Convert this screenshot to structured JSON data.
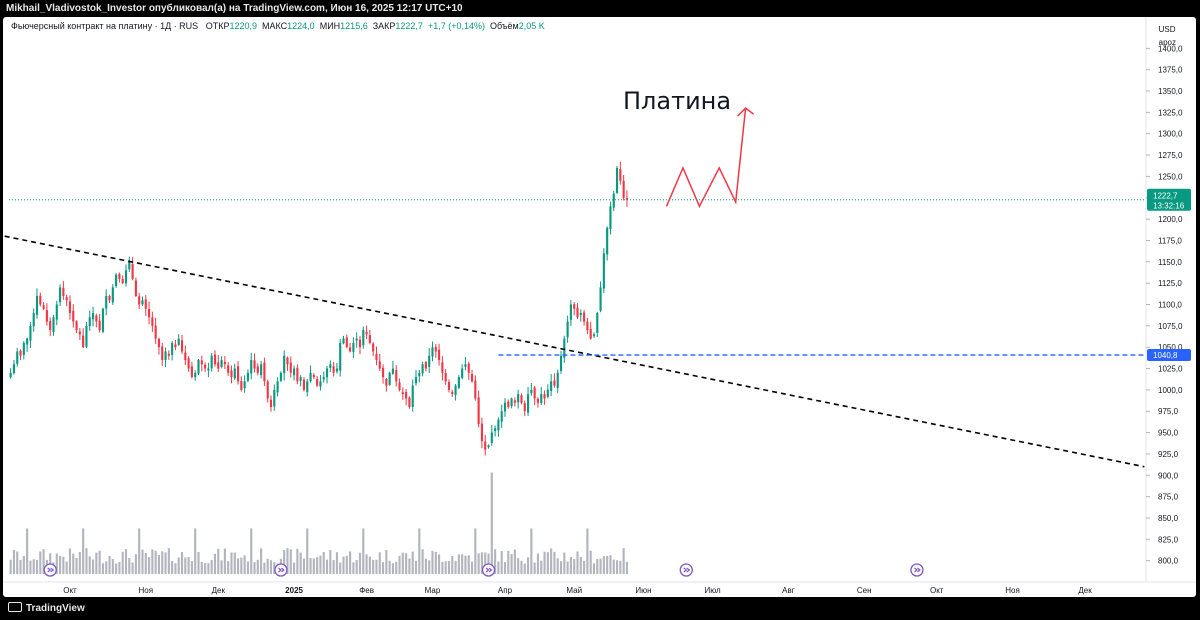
{
  "publisher_line": "Mikhail_Vladivostok_Investor опубликовал(а) на TradingView.com, Июн 16, 2025 12:17 UTC+10",
  "legend": {
    "symbol": "Фьючерсный контракт на платину · 1Д · RUS",
    "open_label": "ОТКР",
    "open": "1220,9",
    "high_label": "МАКС",
    "high": "1224,0",
    "low_label": "МИН",
    "low": "1215,6",
    "close_label": "ЗАКР",
    "close": "1222,7",
    "change": "+1,7 (+0,14%)",
    "volume_label": "Объём",
    "volume": "2,05 K"
  },
  "scale": {
    "currency": "USD",
    "mode": "apoz"
  },
  "annotation_title": "Платина",
  "price_tag": {
    "price": "1222,7",
    "countdown": "13:32:16",
    "color": "#089981"
  },
  "level_tag": {
    "price": "1040,8",
    "color": "#2962ff"
  },
  "footer_brand": "TradingView",
  "event_marker_icon": "dividend-arrow-icon",
  "colors": {
    "up": "#089981",
    "down": "#f23645",
    "volume": "#b2b5be",
    "trend": "#000000",
    "projection": "#f23645"
  },
  "chart_data": {
    "type": "candlestick",
    "y_axis": {
      "min": 775,
      "max": 1425,
      "ticks": [
        "800,0",
        "825,0",
        "850,0",
        "875,0",
        "900,0",
        "925,0",
        "950,0",
        "975,0",
        "1000,0",
        "1025,0",
        "1050,0",
        "1075,0",
        "1100,0",
        "1125,0",
        "1150,0",
        "1175,0",
        "1200,0",
        "1225,0",
        "1250,0",
        "1275,0",
        "1300,0",
        "1325,0",
        "1350,0",
        "1375,0",
        "1400,0"
      ]
    },
    "x_axis": {
      "labels": [
        {
          "text": "Окт",
          "index": 18
        },
        {
          "text": "Ноя",
          "index": 41
        },
        {
          "text": "Дек",
          "index": 63
        },
        {
          "text": "2025",
          "index": 86
        },
        {
          "text": "Фев",
          "index": 108
        },
        {
          "text": "Мар",
          "index": 128
        },
        {
          "text": "Апр",
          "index": 150
        },
        {
          "text": "Май",
          "index": 171
        },
        {
          "text": "Июн",
          "index": 192
        },
        {
          "text": "Июл",
          "index": 213
        },
        {
          "text": "Авг",
          "index": 236
        },
        {
          "text": "Сен",
          "index": 259
        },
        {
          "text": "Окт",
          "index": 281
        },
        {
          "text": "Ноя",
          "index": 304
        },
        {
          "text": "Дек",
          "index": 326
        }
      ],
      "total_slots": 345
    },
    "closes": [
      1020,
      1030,
      1045,
      1040,
      1055,
      1060,
      1075,
      1090,
      1110,
      1100,
      1095,
      1080,
      1070,
      1085,
      1100,
      1120,
      1110,
      1105,
      1090,
      1080,
      1070,
      1065,
      1050,
      1075,
      1085,
      1090,
      1080,
      1070,
      1095,
      1110,
      1105,
      1120,
      1135,
      1130,
      1125,
      1140,
      1150,
      1130,
      1110,
      1100,
      1105,
      1095,
      1085,
      1075,
      1060,
      1050,
      1035,
      1045,
      1040,
      1055,
      1050,
      1060,
      1045,
      1035,
      1025,
      1015,
      1020,
      1035,
      1030,
      1025,
      1025,
      1040,
      1030,
      1025,
      1035,
      1030,
      1020,
      1015,
      1025,
      1010,
      1000,
      1010,
      1020,
      1035,
      1025,
      1020,
      1030,
      1010,
      990,
      980,
      1000,
      1010,
      1020,
      1040,
      1030,
      1020,
      1025,
      1010,
      1015,
      1000,
      1010,
      1020,
      1015,
      1005,
      1010,
      1015,
      1025,
      1030,
      1020,
      1025,
      1055,
      1060,
      1050,
      1045,
      1055,
      1060,
      1050,
      1070,
      1065,
      1055,
      1045,
      1035,
      1025,
      1015,
      1005,
      1020,
      1025,
      1010,
      1000,
      995,
      990,
      980,
      1005,
      1015,
      1020,
      1030,
      1025,
      1040,
      1050,
      1045,
      1035,
      1020,
      1010,
      1000,
      995,
      1005,
      1015,
      1025,
      1030,
      1020,
      1010,
      990,
      960,
      940,
      930,
      935,
      950,
      955,
      965,
      975,
      985,
      980,
      990,
      985,
      995,
      985,
      975,
      995,
      1000,
      990,
      985,
      995,
      990,
      1000,
      1010,
      1005,
      1020,
      1040,
      1060,
      1080,
      1100,
      1095,
      1085,
      1090,
      1080,
      1070,
      1060,
      1065,
      1090,
      1120,
      1160,
      1190,
      1215,
      1230,
      1260,
      1245,
      1225,
      1222.7
    ],
    "volume": {
      "unit": "relative",
      "max_shown": 1.0
    },
    "annotations": [
      {
        "type": "dashed_trendline",
        "from_index": 0,
        "from_price": 1180,
        "to_index": 344,
        "to_price": 910,
        "color": "#000000"
      },
      {
        "type": "horizontal_level",
        "from_index": 148,
        "price": 1040.8,
        "color": "#2962ff"
      },
      {
        "type": "projection_path",
        "color": "#f23645",
        "points": [
          [
            199,
            1215
          ],
          [
            204,
            1260
          ],
          [
            209,
            1215
          ],
          [
            215,
            1260
          ],
          [
            220,
            1220
          ],
          [
            223,
            1330
          ]
        ]
      }
    ],
    "event_markers_index": [
      12,
      82,
      145,
      205,
      275
    ],
    "current_price": 1222.7
  }
}
